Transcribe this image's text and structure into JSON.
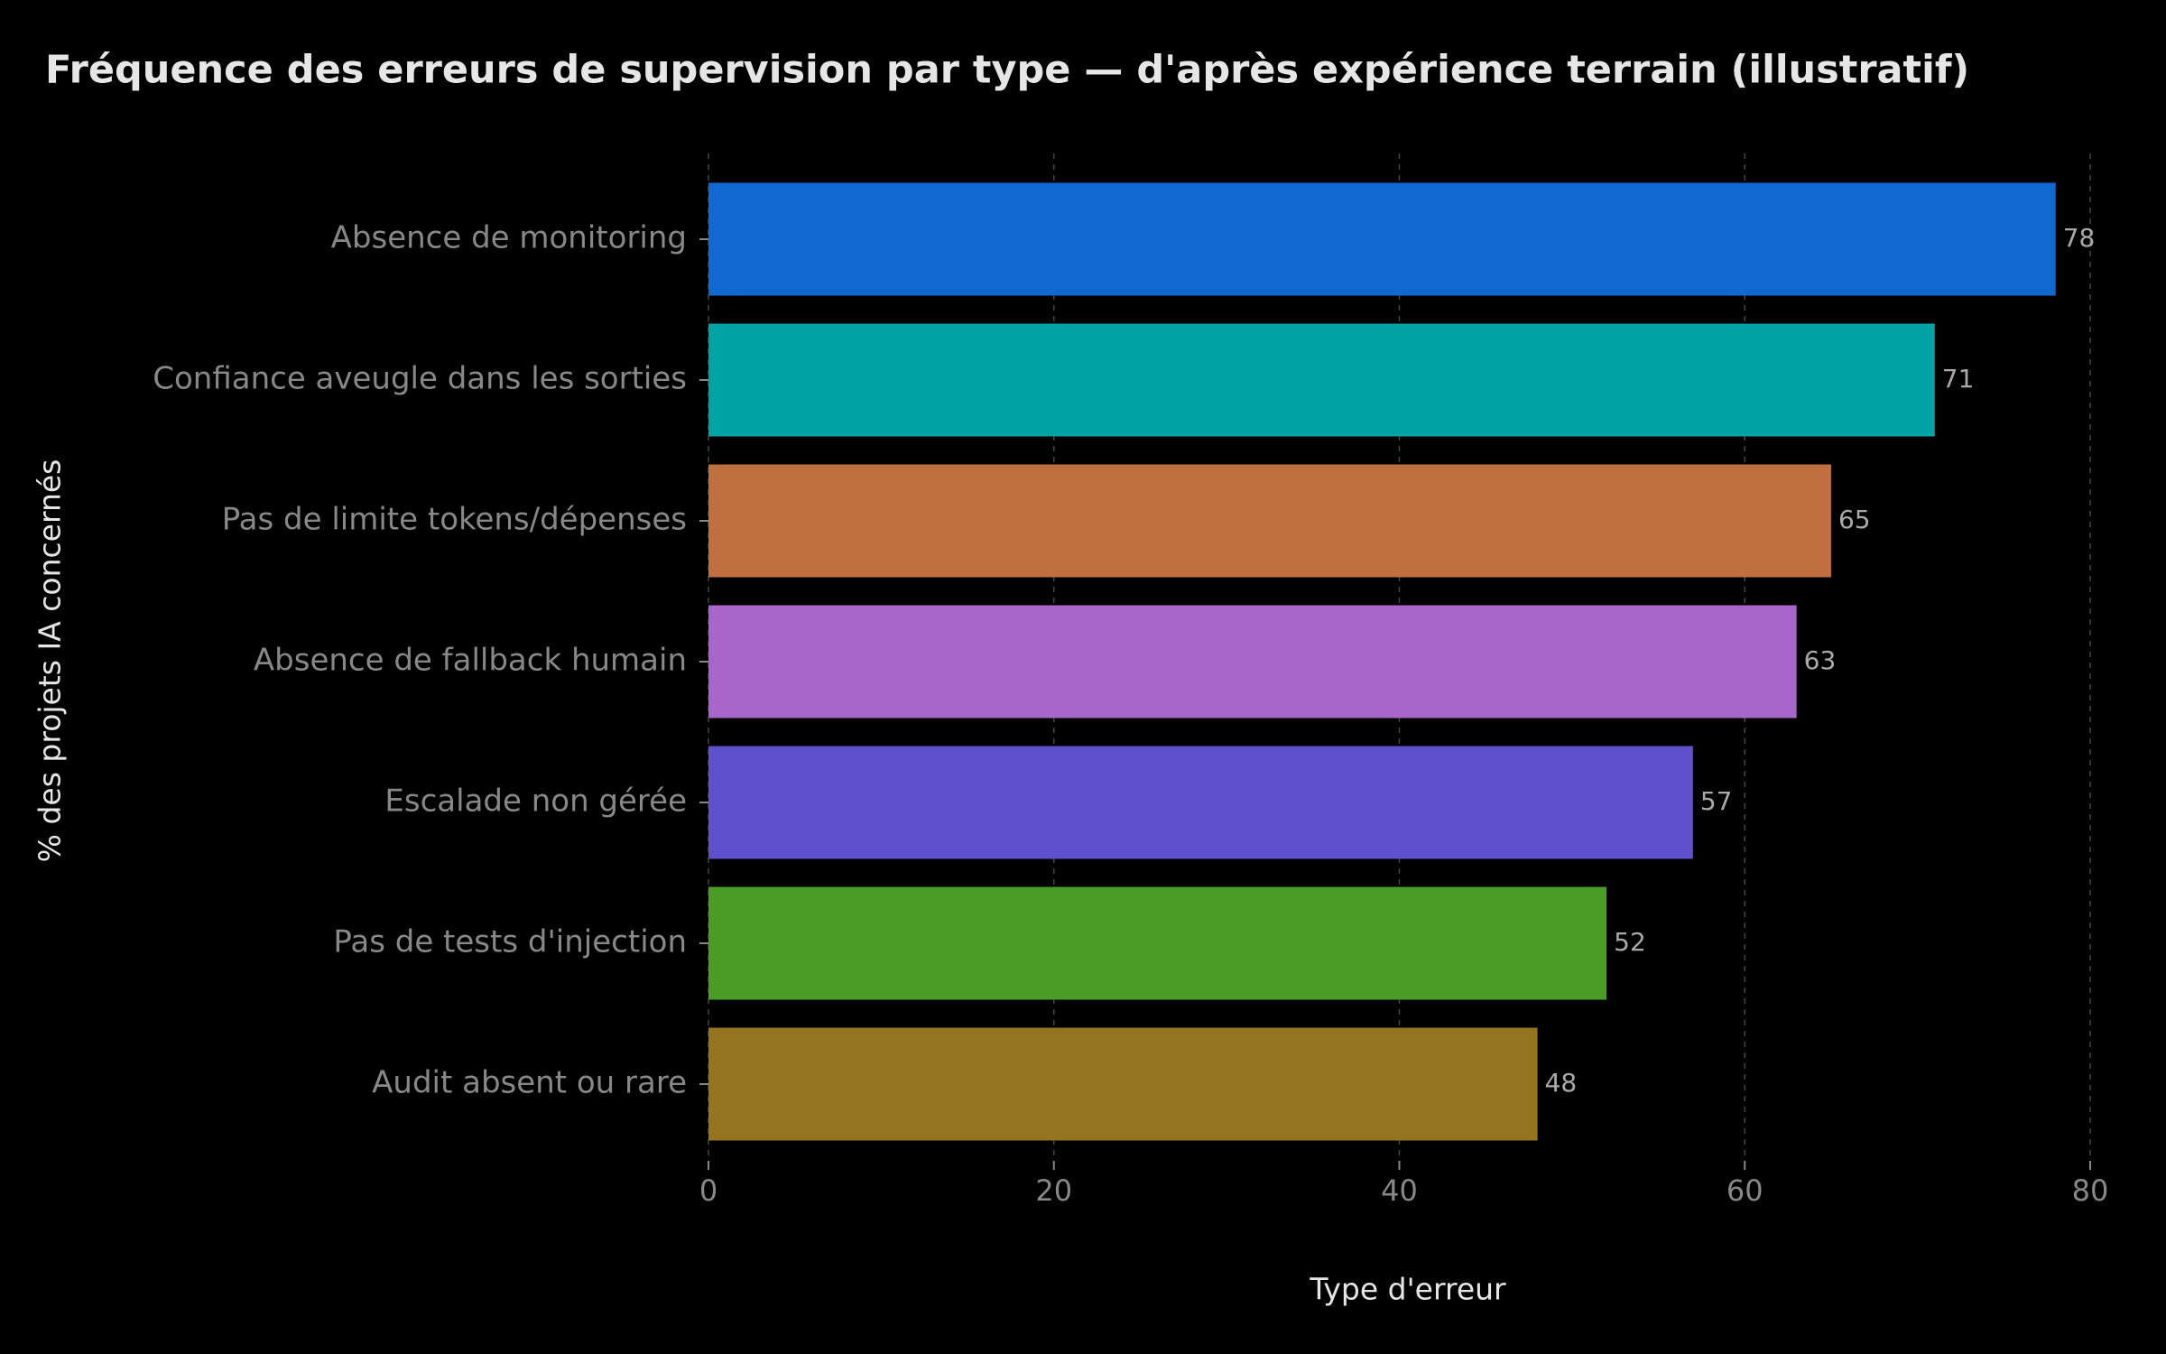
{
  "chart_data": {
    "type": "barh",
    "title": "Fréquence des erreurs de supervision par type — d'après expérience terrain (illustratif)",
    "xlabel": "Type d'erreur",
    "ylabel": "% des projets IA concernés",
    "categories": [
      "Absence de monitoring",
      "Confiance aveugle dans les sorties",
      "Pas de limite tokens/dépenses",
      "Absence de fallback humain",
      "Escalade non gérée",
      "Pas de tests d'injection",
      "Audit absent ou rare"
    ],
    "values": [
      78,
      71,
      65,
      63,
      57,
      52,
      48
    ],
    "colors": [
      "#1168d0",
      "#00a3a3",
      "#c06f3e",
      "#a866c9",
      "#5f50cc",
      "#4c9d26",
      "#957420"
    ],
    "xlim": [
      0,
      80
    ],
    "xticks": [
      0,
      20,
      40,
      60,
      80
    ],
    "grid": true
  }
}
